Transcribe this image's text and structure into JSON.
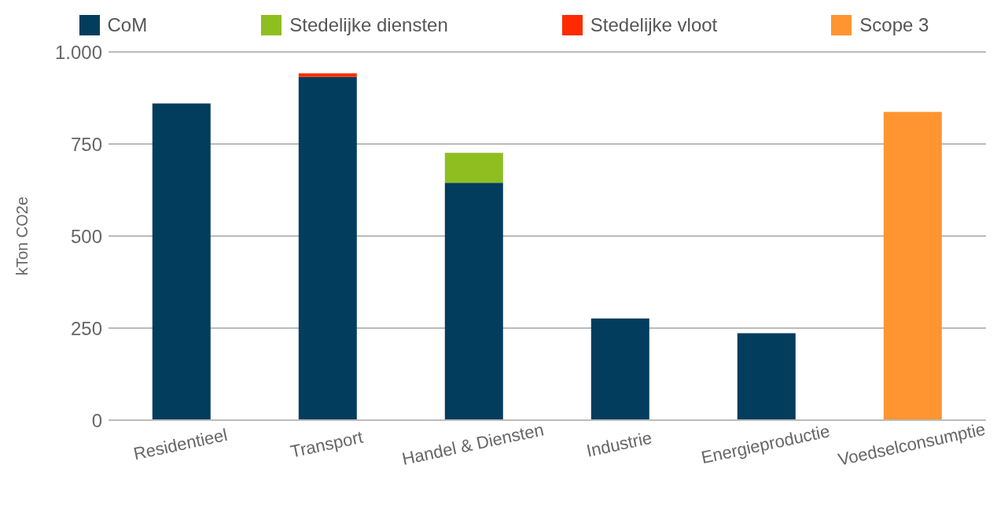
{
  "chart_data": {
    "type": "bar",
    "stacked": true,
    "ylabel": "kTon CO2e",
    "categories": [
      "Residentieel",
      "Transport",
      "Handel & Diensten",
      "Industrie",
      "Energieproductie",
      "Voedselconsumptie"
    ],
    "series": [
      {
        "name": "CoM",
        "color": "#023d5e",
        "values": [
          860,
          932,
          645,
          276,
          236,
          null
        ]
      },
      {
        "name": "Stedelijke diensten",
        "color": "#8fbe21",
        "values": [
          null,
          null,
          81,
          null,
          null,
          null
        ]
      },
      {
        "name": "Stedelijke vloot",
        "color": "#ff2a00",
        "values": [
          null,
          10,
          null,
          null,
          null,
          null
        ]
      },
      {
        "name": "Scope 3",
        "color": "#ff9530",
        "values": [
          null,
          null,
          null,
          null,
          null,
          837
        ]
      }
    ],
    "ylim": [
      0,
      1000
    ],
    "yticks": [
      0,
      {
        "value": 250,
        "label": "250"
      },
      {
        "value": 500,
        "label": "500"
      },
      {
        "value": 750,
        "label": "750"
      },
      {
        "value": 1000,
        "label": "1.000"
      }
    ],
    "grid": "y",
    "legend": "top"
  }
}
